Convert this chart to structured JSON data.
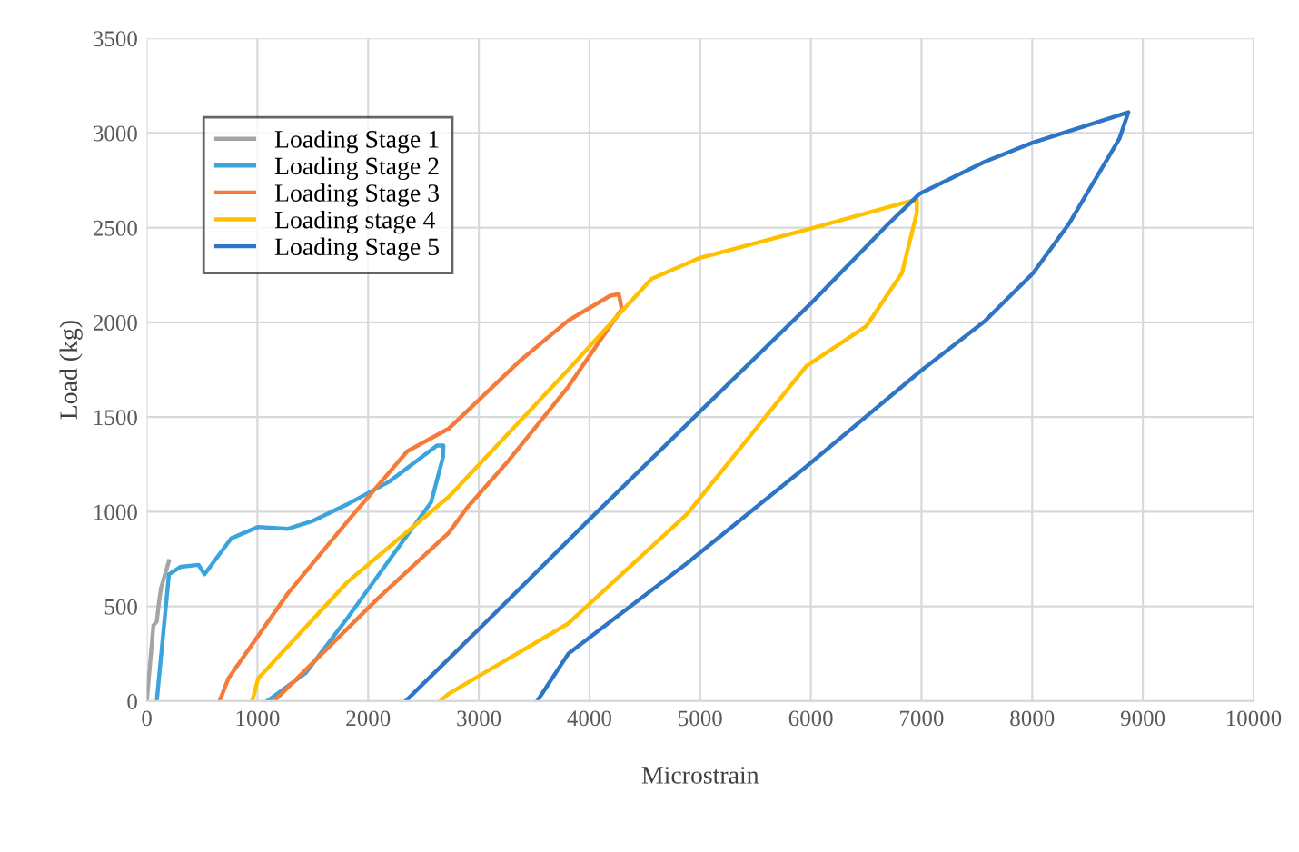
{
  "chart_data": {
    "type": "line",
    "xlabel": "Microstrain",
    "ylabel": "Load (kg)",
    "xlim": [
      0,
      10000
    ],
    "xticks": [
      0,
      1000,
      2000,
      3000,
      4000,
      5000,
      6000,
      7000,
      8000,
      9000,
      10000
    ],
    "ylim": [
      0,
      3500
    ],
    "yticks": [
      0,
      500,
      1000,
      1500,
      2000,
      2500,
      3000,
      3500
    ],
    "grid": true,
    "legend": "top left",
    "marker": "none",
    "line_style": "solid",
    "series": [
      {
        "name": "Loading Stage 1",
        "color": "#a5a5a5",
        "x": [
          0,
          30,
          60,
          90,
          110,
          130,
          200
        ],
        "values": [
          0,
          200,
          400,
          420,
          520,
          600,
          740
        ]
      },
      {
        "name": "Loading Stage 2",
        "color": "#3aa4dd",
        "x": [
          90,
          200,
          307,
          468,
          522,
          764,
          1006,
          1276,
          1491,
          1814,
          2192,
          2622,
          2680,
          2677,
          2569,
          2246,
          1814,
          1438,
          1087
        ],
        "values": [
          0,
          670,
          710,
          720,
          670,
          860,
          920,
          910,
          950,
          1040,
          1160,
          1350,
          1350,
          1290,
          1050,
          790,
          440,
          150,
          0
        ]
      },
      {
        "name": "Loading Stage 3",
        "color": "#f47b3a",
        "x": [
          657,
          737,
          1276,
          1814,
          2354,
          2730,
          3376,
          3808,
          4184,
          4265,
          4292,
          4184,
          3808,
          3268,
          2892,
          2730,
          2084,
          1150
        ],
        "values": [
          0,
          120,
          570,
          950,
          1320,
          1440,
          1800,
          2010,
          2140,
          2150,
          2070,
          1980,
          1660,
          1270,
          1020,
          890,
          540,
          0
        ]
      },
      {
        "name": "Loading stage 4",
        "color": "#ffc000",
        "x": [
          953,
          1006,
          1814,
          2730,
          3808,
          4184,
          4561,
          4992,
          5961,
          6958,
          6958,
          6823,
          6500,
          5961,
          4884,
          3808,
          2730,
          2650
        ],
        "values": [
          0,
          120,
          630,
          1080,
          1750,
          1990,
          2230,
          2340,
          2490,
          2650,
          2580,
          2260,
          1980,
          1770,
          990,
          410,
          40,
          0
        ]
      },
      {
        "name": "Loading Stage 5",
        "color": "#2e75c6",
        "x": [
          2337,
          3000,
          4000,
          5000,
          6000,
          6700,
          6984,
          7577,
          8008,
          8869,
          8788,
          8331,
          8008,
          7577,
          6984,
          5961,
          4884,
          3808,
          3527
        ],
        "values": [
          0,
          380,
          960,
          1530,
          2100,
          2520,
          2680,
          2850,
          2950,
          3110,
          2970,
          2520,
          2260,
          2010,
          1740,
          1240,
          730,
          250,
          0
        ]
      }
    ]
  }
}
